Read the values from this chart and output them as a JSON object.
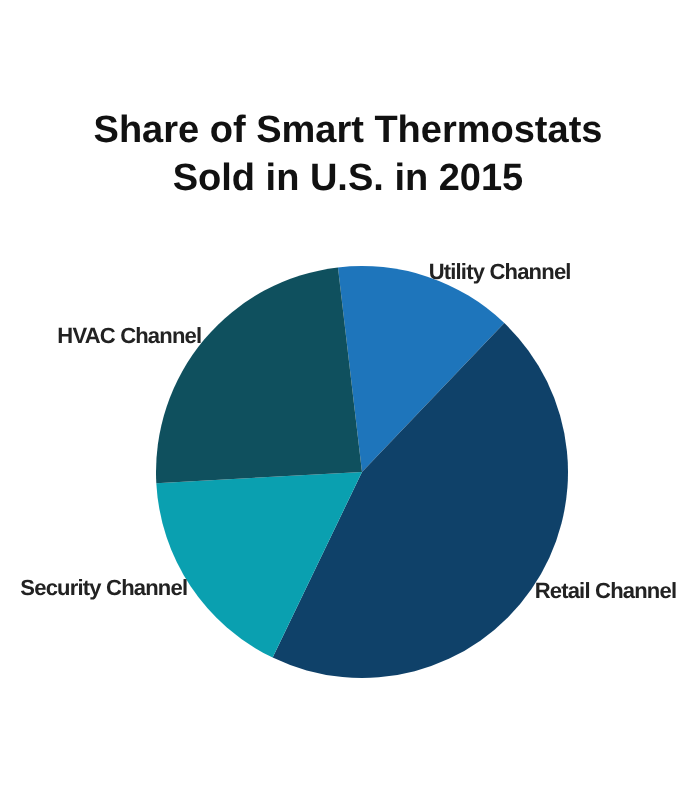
{
  "chart_data": {
    "type": "pie",
    "title": "Share of Smart Thermostats Sold in U.S. in 2015",
    "categories": [
      "Utility Channel",
      "Retail Channel",
      "Security Channel",
      "HVAC Channel"
    ],
    "values": [
      14,
      45,
      17,
      24
    ],
    "colors": [
      "#1e75bb",
      "#0f4169",
      "#0aa0b0",
      "#0f505e"
    ]
  }
}
